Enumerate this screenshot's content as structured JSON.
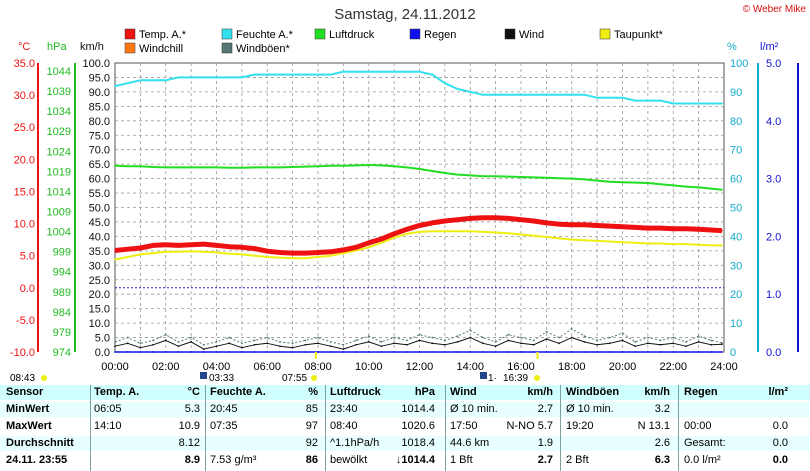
{
  "title": "Samstag, 24.11.2012",
  "credit": "© Weber Mike",
  "axis_units": {
    "temp": "°C",
    "pressure": "hPa",
    "wind": "km/h",
    "humidity": "%",
    "rain": "l/m²"
  },
  "legend": [
    {
      "label": "Temp. A.*",
      "color": "#ee1111"
    },
    {
      "label": "Feuchte A.*",
      "color": "#33e0ee"
    },
    {
      "label": "Luftdruck",
      "color": "#22dd22"
    },
    {
      "label": "Regen",
      "color": "#1111ee"
    },
    {
      "label": "Wind",
      "color": "#111111"
    },
    {
      "label": "Taupunkt*",
      "color": "#eeee11"
    },
    {
      "label": "Windchill",
      "color": "#ff7711"
    },
    {
      "label": "Windböen*",
      "color": "#557777"
    }
  ],
  "sun_events": {
    "sunrise_1": "08:43",
    "mark_1": "03:33",
    "mark_2": "07:55",
    "mark_3": "16:39",
    "mark_3_prefix": "1·"
  },
  "chart_data": {
    "type": "line",
    "x": [
      "00:00",
      "00:30",
      "01:00",
      "01:30",
      "02:00",
      "02:30",
      "03:00",
      "03:30",
      "04:00",
      "04:30",
      "05:00",
      "05:30",
      "06:00",
      "06:30",
      "07:00",
      "07:30",
      "08:00",
      "08:30",
      "09:00",
      "09:30",
      "10:00",
      "10:30",
      "11:00",
      "11:30",
      "12:00",
      "12:30",
      "13:00",
      "13:30",
      "14:00",
      "14:30",
      "15:00",
      "15:30",
      "16:00",
      "16:30",
      "17:00",
      "17:30",
      "18:00",
      "18:30",
      "19:00",
      "19:30",
      "20:00",
      "20:30",
      "21:00",
      "21:30",
      "22:00",
      "22:30",
      "23:00",
      "23:30",
      "23:55"
    ],
    "x_ticks": [
      "00:00",
      "02:00",
      "04:00",
      "06:00",
      "08:00",
      "10:00",
      "12:00",
      "14:00",
      "16:00",
      "18:00",
      "20:00",
      "22:00",
      "24:00"
    ],
    "xlim": [
      "00:00",
      "24:00"
    ],
    "axes": {
      "temp": {
        "label": "°C",
        "ylim": [
          -10,
          35
        ],
        "ticks": [
          35.0,
          30.0,
          25.0,
          20.0,
          15.0,
          10.0,
          5.0,
          0.0,
          -5.0,
          -10.0
        ]
      },
      "pressure": {
        "label": "hPa",
        "ylim": [
          974,
          1046
        ],
        "ticks": [
          1044,
          1039,
          1034,
          1029,
          1024,
          1019,
          1014,
          1009,
          1004,
          999,
          994,
          989,
          984,
          979,
          974
        ]
      },
      "wind": {
        "label": "km/h",
        "ylim": [
          0,
          100
        ],
        "ticks": [
          100.0,
          95.0,
          90.0,
          85.0,
          80.0,
          75.0,
          70.0,
          65.0,
          60.0,
          55.0,
          50.0,
          45.0,
          40.0,
          35.0,
          30.0,
          25.0,
          20.0,
          15.0,
          10.0,
          5.0,
          0.0
        ]
      },
      "humidity": {
        "label": "%",
        "ylim": [
          0,
          100
        ],
        "ticks": [
          100,
          90,
          80,
          70,
          60,
          50,
          40,
          30,
          20,
          10,
          0
        ]
      },
      "rain": {
        "label": "l/m²",
        "ylim": [
          0,
          5.0
        ],
        "ticks": [
          5.0,
          4.0,
          3.0,
          2.0,
          1.0,
          0.0
        ]
      }
    },
    "series": [
      {
        "name": "Temp. A.*",
        "axis": "temp",
        "color": "#ee1111",
        "values": [
          5.8,
          6.0,
          6.2,
          6.6,
          6.7,
          6.6,
          6.7,
          6.8,
          6.6,
          6.4,
          6.3,
          6.1,
          5.7,
          5.5,
          5.4,
          5.4,
          5.5,
          5.6,
          5.9,
          6.3,
          7.0,
          7.6,
          8.4,
          9.1,
          9.7,
          10.1,
          10.4,
          10.6,
          10.8,
          10.9,
          10.9,
          10.8,
          10.6,
          10.4,
          10.1,
          9.9,
          9.8,
          9.8,
          9.7,
          9.6,
          9.5,
          9.4,
          9.3,
          9.3,
          9.2,
          9.2,
          9.1,
          9.0,
          8.9
        ]
      },
      {
        "name": "Taupunkt*",
        "axis": "temp",
        "color": "#eeee11",
        "values": [
          4.4,
          4.8,
          5.2,
          5.4,
          5.6,
          5.6,
          5.7,
          5.6,
          5.5,
          5.3,
          5.2,
          5.0,
          4.8,
          4.7,
          4.6,
          4.6,
          4.8,
          5.0,
          5.4,
          5.8,
          6.3,
          7.0,
          7.8,
          8.4,
          8.7,
          8.8,
          8.8,
          8.8,
          8.8,
          8.7,
          8.6,
          8.5,
          8.3,
          8.1,
          7.9,
          7.7,
          7.5,
          7.4,
          7.3,
          7.2,
          7.1,
          7.0,
          6.9,
          6.9,
          6.8,
          6.8,
          6.7,
          6.6,
          6.6
        ]
      },
      {
        "name": "Feuchte A.*",
        "axis": "humidity",
        "color": "#33e0ee",
        "values": [
          92,
          93,
          94,
          94,
          94,
          95,
          95,
          95,
          95,
          95,
          95,
          96,
          96,
          96,
          96,
          96,
          96,
          96,
          97,
          97,
          97,
          97,
          97,
          97,
          97,
          96,
          93,
          91,
          90,
          89,
          89,
          89,
          89,
          89,
          89,
          89,
          89,
          89,
          88,
          88,
          88,
          87,
          87,
          87,
          86,
          86,
          86,
          86,
          86
        ]
      },
      {
        "name": "Luftdruck",
        "axis": "pressure",
        "color": "#22dd22",
        "values": [
          1020.4,
          1020.3,
          1020.3,
          1020.1,
          1020.0,
          1020.0,
          1020.0,
          1020.0,
          1020.0,
          1019.9,
          1019.9,
          1020.0,
          1020.0,
          1020.0,
          1020.1,
          1020.2,
          1020.3,
          1020.4,
          1020.4,
          1020.5,
          1020.6,
          1020.5,
          1020.3,
          1020.0,
          1019.6,
          1019.1,
          1018.6,
          1018.2,
          1018.0,
          1017.8,
          1017.8,
          1017.7,
          1017.6,
          1017.5,
          1017.4,
          1017.3,
          1017.2,
          1017.0,
          1016.7,
          1016.4,
          1016.3,
          1016.2,
          1016.1,
          1015.8,
          1015.5,
          1015.2,
          1015.0,
          1014.7,
          1014.4
        ]
      },
      {
        "name": "Wind",
        "axis": "wind",
        "color": "#111111",
        "values": [
          2.0,
          3.0,
          1.5,
          2.5,
          4.0,
          2.0,
          3.5,
          1.0,
          2.0,
          3.0,
          1.5,
          2.5,
          3.0,
          2.0,
          1.5,
          2.5,
          3.0,
          2.0,
          1.0,
          2.5,
          3.5,
          2.0,
          3.0,
          2.5,
          4.0,
          3.0,
          2.5,
          3.5,
          5.0,
          3.0,
          2.0,
          4.0,
          3.0,
          2.5,
          4.5,
          3.0,
          5.0,
          3.5,
          2.5,
          3.0,
          4.0,
          2.0,
          3.0,
          2.5,
          3.0,
          2.0,
          3.5,
          2.5,
          2.7
        ]
      },
      {
        "name": "Windböen*",
        "axis": "wind",
        "color": "#557777",
        "values": [
          3.5,
          5.0,
          3.0,
          4.0,
          6.0,
          3.5,
          5.0,
          2.5,
          3.5,
          5.0,
          3.0,
          4.0,
          5.0,
          3.5,
          3.0,
          4.0,
          5.0,
          3.5,
          2.5,
          4.0,
          5.5,
          3.5,
          5.0,
          4.0,
          6.0,
          5.0,
          4.0,
          5.5,
          7.5,
          5.0,
          3.5,
          6.0,
          5.0,
          4.0,
          7.0,
          5.0,
          8.0,
          5.5,
          4.0,
          5.0,
          6.5,
          3.5,
          5.0,
          4.0,
          5.0,
          3.5,
          5.5,
          4.0,
          3.2
        ]
      },
      {
        "name": "Regen",
        "axis": "rain",
        "color": "#1111ee",
        "values": [
          0,
          0,
          0,
          0,
          0,
          0,
          0,
          0,
          0,
          0,
          0,
          0,
          0,
          0,
          0,
          0,
          0,
          0,
          0,
          0,
          0,
          0,
          0,
          0,
          0,
          0,
          0,
          0,
          0,
          0,
          0,
          0,
          0,
          0,
          0,
          0,
          0,
          0,
          0,
          0,
          0,
          0,
          0,
          0,
          0,
          0,
          0,
          0,
          0
        ]
      }
    ],
    "reference_line": {
      "axis": "temp",
      "value": 0.0,
      "color": "#2222cc"
    },
    "grid": true
  },
  "table": {
    "rows": [
      {
        "label": "Sensor",
        "temp_t": "Temp. A.",
        "temp_v": "°C",
        "hum_t": "Feuchte A.",
        "hum_v": "%",
        "pres_t": "Luftdruck",
        "pres_v": "hPa",
        "wind_t": "Wind",
        "wind_v": "km/h",
        "gust_t": "Windböen",
        "gust_v": "km/h",
        "rain_t": "Regen",
        "rain_v": "l/m²"
      },
      {
        "label": "MinWert",
        "temp_t": "06:05",
        "temp_v": "5.3",
        "hum_t": "20:45",
        "hum_v": "85",
        "pres_t": "23:40",
        "pres_v": "1014.4",
        "wind_t": "Ø 10 min.",
        "wind_v": "2.7",
        "gust_t": "Ø 10 min.",
        "gust_v": "3.2",
        "rain_t": "",
        "rain_v": ""
      },
      {
        "label": "MaxWert",
        "temp_t": "14:10",
        "temp_v": "10.9",
        "hum_t": "07:35",
        "hum_v": "97",
        "pres_t": "08:40",
        "pres_v": "1020.6",
        "wind_t": "17:50",
        "wind_v": "N-NO 5.7",
        "gust_t": "19:20",
        "gust_v": "N 13.1",
        "rain_t": "00:00",
        "rain_v": "0.0"
      },
      {
        "label": "Durchschnitt",
        "temp_t": "",
        "temp_v": "8.12",
        "hum_t": "",
        "hum_v": "92",
        "pres_t": "^1.1hPa/h",
        "pres_v": "1018.4",
        "wind_t": "44.6 km",
        "wind_v": "1.9",
        "gust_t": "",
        "gust_v": "2.6",
        "rain_t": "Gesamt:",
        "rain_v": "0.0"
      },
      {
        "label": "24.11. 23:55",
        "temp_t": "",
        "temp_v": "8.9",
        "hum_t": "7.53 g/m³",
        "hum_v": "86",
        "pres_t": "bewölkt",
        "pres_v": "↓1014.4",
        "wind_t": "1 Bft",
        "wind_v": "2.7",
        "gust_t": "2 Bft",
        "gust_v": "6.3",
        "rain_t": "0.0 l/m²",
        "rain_v": "0.0"
      }
    ]
  }
}
